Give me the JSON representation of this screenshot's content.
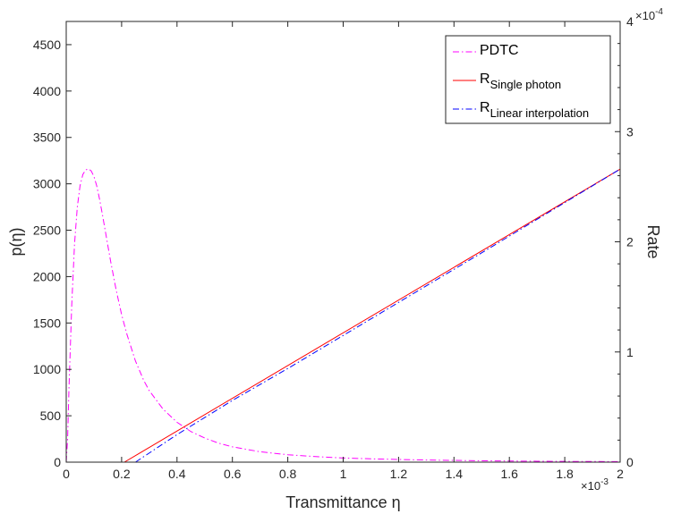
{
  "chart_data": {
    "type": "line",
    "xlabel": "Transmittance η",
    "ylabel_left": "p(η)",
    "ylabel_right": "Rate",
    "x_range": [
      0,
      0.002
    ],
    "x_exponent_label": "×10",
    "x_exponent_power": "-3",
    "x_ticks": [
      0,
      0.0002,
      0.0004,
      0.0006,
      0.0008,
      0.001,
      0.0012,
      0.0014,
      0.0016,
      0.0018,
      0.002
    ],
    "x_tick_labels": [
      "0",
      "0.2",
      "0.4",
      "0.6",
      "0.8",
      "1",
      "1.2",
      "1.4",
      "1.6",
      "1.8",
      "2"
    ],
    "y_left_range": [
      0,
      4750
    ],
    "y_left_ticks": [
      0,
      500,
      1000,
      1500,
      2000,
      2500,
      3000,
      3500,
      4000,
      4500
    ],
    "y_left_tick_labels": [
      "0",
      "500",
      "1000",
      "1500",
      "2000",
      "2500",
      "3000",
      "3500",
      "4000",
      "4500"
    ],
    "y_right_range": [
      0,
      0.0004
    ],
    "y_right_ticks": [
      0,
      0.0001,
      0.0002,
      0.0003,
      0.0004
    ],
    "y_right_tick_labels": [
      "0",
      "1",
      "2",
      "3",
      "4"
    ],
    "y_right_exponent_label": "×10",
    "y_right_exponent_power": "-4",
    "legend_position": "top-right",
    "series": [
      {
        "name": "PDTC",
        "axis": "left",
        "color": "#ff00ff",
        "dash": "dash-dot",
        "x": [
          0,
          5e-06,
          1e-05,
          2e-05,
          3e-05,
          4e-05,
          5e-05,
          6e-05,
          7e-05,
          8e-05,
          9e-05,
          0.0001,
          0.00011,
          0.00012,
          0.00013,
          0.00014,
          0.00015,
          0.00016,
          0.00018,
          0.0002,
          0.00022,
          0.00025,
          0.00028,
          0.0003,
          0.00035,
          0.0004,
          0.00045,
          0.0005,
          0.00055,
          0.0006,
          0.0007,
          0.0008,
          0.0009,
          0.001,
          0.0011,
          0.0012,
          0.0013,
          0.0014,
          0.0015,
          0.0016,
          0.0017,
          0.0018,
          0.0019,
          0.002
        ],
        "y": [
          0,
          250,
          800,
          1700,
          2350,
          2750,
          2980,
          3100,
          3150,
          3160,
          3140,
          3080,
          2980,
          2840,
          2680,
          2510,
          2340,
          2170,
          1860,
          1590,
          1370,
          1090,
          880,
          770,
          570,
          430,
          330,
          260,
          205,
          165,
          112,
          80,
          60,
          45,
          36,
          29,
          23,
          19,
          15,
          12,
          10,
          8,
          7,
          6
        ]
      },
      {
        "name": "Single photon",
        "axis": "right",
        "color": "#ff0000",
        "dash": "solid",
        "x": [
          0.00021,
          0.002
        ],
        "y": [
          0,
          0.000266
        ]
      },
      {
        "name": "Linear interpolation",
        "axis": "right",
        "color": "#0000ff",
        "dash": "dash-dot",
        "x": [
          0.00025,
          0.0004,
          0.0006,
          0.0008,
          0.001,
          0.0015,
          0.002
        ],
        "y": [
          0,
          2.5e-05,
          5.6e-05,
          8.5e-05,
          0.000115,
          0.00019,
          0.000266
        ]
      }
    ],
    "legend": [
      {
        "main": "PDTC",
        "sub": ""
      },
      {
        "main": "R",
        "sub": "Single photon"
      },
      {
        "main": "R",
        "sub": "Linear interpolation"
      }
    ]
  }
}
